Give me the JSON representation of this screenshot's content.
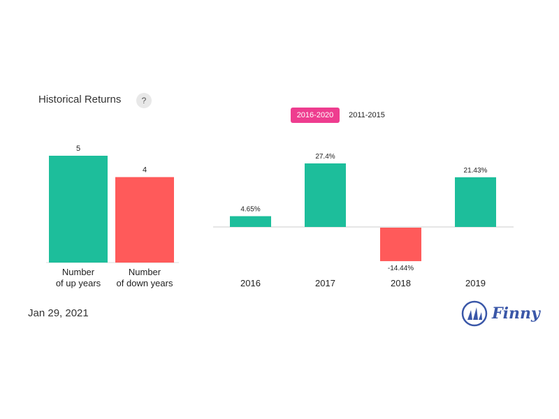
{
  "header": {
    "title": "Historical Returns",
    "help_label": "?",
    "tabs": [
      {
        "label": "2016-2020",
        "active": true
      },
      {
        "label": "2011-2015",
        "active": false
      }
    ]
  },
  "chart_data": [
    {
      "type": "bar",
      "categories": [
        "Number\nof up years",
        "Number\nof down years"
      ],
      "values": [
        5,
        4
      ],
      "value_labels": [
        "5",
        "4"
      ],
      "colors": [
        "#1dbe9b",
        "#ff5a5a"
      ]
    },
    {
      "type": "bar",
      "categories": [
        "2016",
        "2017",
        "2018",
        "2019"
      ],
      "values": [
        4.65,
        27.4,
        -14.44,
        21.43
      ],
      "value_labels": [
        "4.65%",
        "27.4%",
        "-14.44%",
        "21.43%"
      ],
      "positive_color": "#1dbe9b",
      "negative_color": "#ff5a5a"
    }
  ],
  "footer": {
    "date": "Jan 29, 2021",
    "brand": "Finny"
  }
}
